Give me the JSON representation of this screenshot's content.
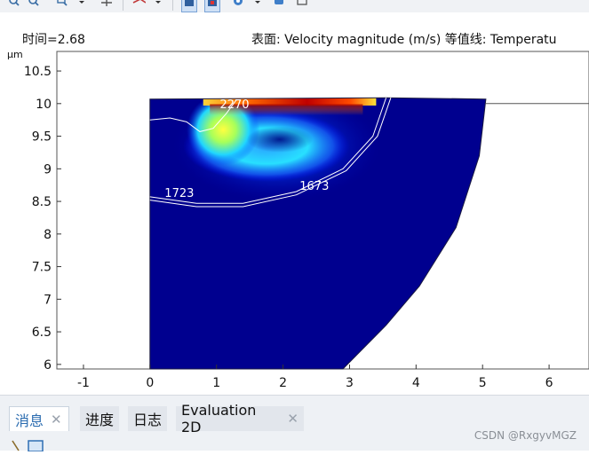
{
  "toolbar": {
    "buttons": [
      "zoom-in-icon",
      "zoom-out-icon",
      "zoom-box-icon",
      "zoom-extents-icon",
      "camera-view-icon",
      "grid-view-icon",
      "plot-settings-icon",
      "scene-light-icon",
      "snapshot-icon",
      "print-icon"
    ]
  },
  "header": {
    "time_label": "时间=2.68",
    "plot_description": "表面: Velocity magnitude (m/s)  等值线: Temperatu"
  },
  "chart_data": {
    "type": "heatmap",
    "y_unit": "µm",
    "xlim": [
      -1.4,
      6.6
    ],
    "ylim": [
      5.93,
      10.8
    ],
    "x_ticks": [
      "-1",
      "0",
      "1",
      "2",
      "3",
      "4",
      "5",
      "6"
    ],
    "x_tick_values": [
      -1,
      0,
      1,
      2,
      3,
      4,
      5,
      6
    ],
    "y_ticks": [
      "6",
      "6.5",
      "7",
      "7.5",
      "8",
      "8.5",
      "9",
      "9.5",
      "10",
      "10.5"
    ],
    "y_tick_values": [
      6,
      6.5,
      7,
      7.5,
      8,
      8.5,
      9,
      9.5,
      10,
      10.5
    ],
    "domain_polygon": [
      [
        0,
        10.07
      ],
      [
        3.55,
        10.09
      ],
      [
        5.05,
        10.07
      ],
      [
        4.95,
        9.2
      ],
      [
        4.6,
        8.1
      ],
      [
        4.05,
        7.2
      ],
      [
        3.55,
        6.6
      ],
      [
        2.9,
        5.93
      ],
      [
        0,
        5.93
      ]
    ],
    "contour_labels": [
      {
        "text": "2270",
        "x": 1.05,
        "y": 9.93
      },
      {
        "text": "1723",
        "x": 0.22,
        "y": 8.57
      },
      {
        "text": "1673",
        "x": 2.25,
        "y": 8.68
      }
    ],
    "contours": [
      [
        [
          0,
          9.75
        ],
        [
          0.3,
          9.78
        ],
        [
          0.55,
          9.72
        ],
        [
          0.75,
          9.57
        ],
        [
          0.95,
          9.62
        ],
        [
          1.15,
          9.85
        ],
        [
          1.3,
          10.06
        ]
      ],
      [
        [
          0,
          8.57
        ],
        [
          0.7,
          8.47
        ],
        [
          1.4,
          8.47
        ],
        [
          2.2,
          8.65
        ],
        [
          2.9,
          9.0
        ],
        [
          3.35,
          9.5
        ],
        [
          3.55,
          10.09
        ]
      ],
      [
        [
          0,
          8.52
        ],
        [
          0.7,
          8.42
        ],
        [
          1.4,
          8.42
        ],
        [
          2.2,
          8.6
        ],
        [
          2.95,
          8.97
        ],
        [
          3.42,
          9.5
        ],
        [
          3.62,
          10.09
        ]
      ]
    ],
    "colors": {
      "background_field": "#00008f"
    }
  },
  "bottom_tabs": [
    {
      "label": "消息",
      "closable": true,
      "active": true
    },
    {
      "label": "进度",
      "closable": false,
      "active": false
    },
    {
      "label": "日志",
      "closable": false,
      "active": false
    },
    {
      "label": "Evaluation 2D",
      "closable": true,
      "active": false
    }
  ],
  "watermark": "CSDN @RxgyvMGZ"
}
